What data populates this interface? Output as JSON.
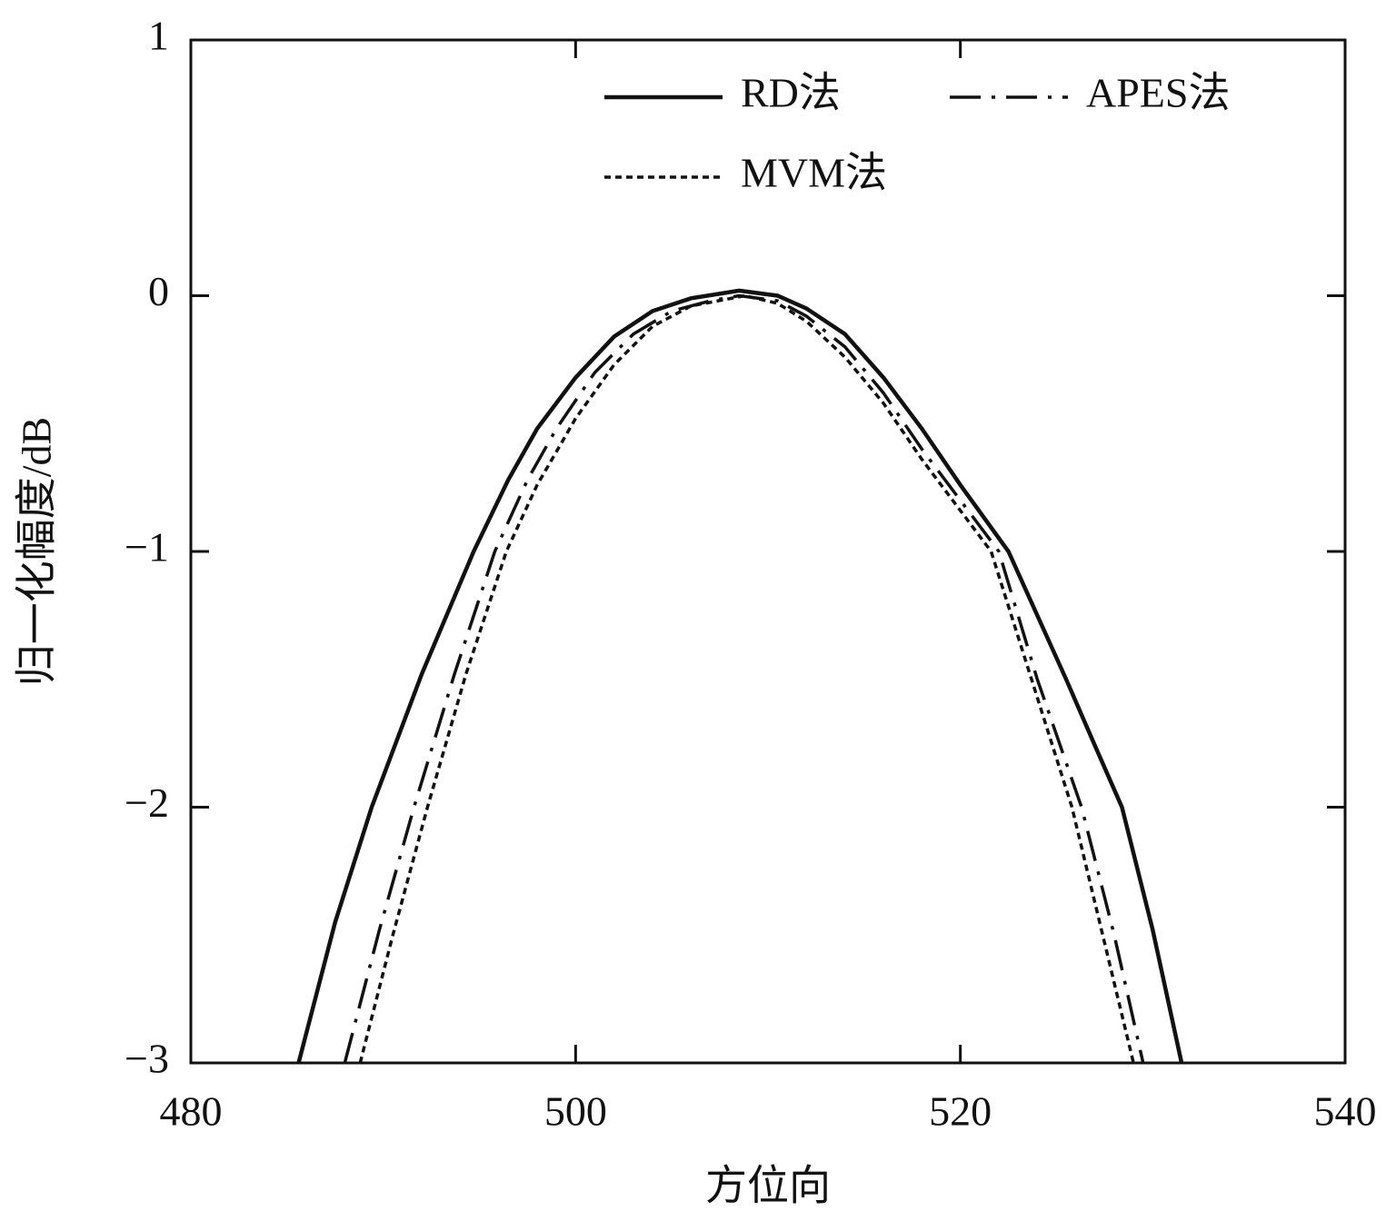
{
  "chart_data": {
    "type": "line",
    "xlabel": "方位向",
    "ylabel": "归一化幅度/dB",
    "xlim": [
      480,
      540
    ],
    "ylim": [
      -3,
      1
    ],
    "xticks": [
      480,
      500,
      520,
      540
    ],
    "yticks": [
      1,
      0,
      {
        "value": -1,
        "label": "−1"
      },
      {
        "value": -2,
        "label": "−2"
      },
      {
        "value": -3,
        "label": "−3"
      }
    ],
    "legend": "upper right",
    "series": [
      {
        "name": "RD法",
        "color": "#111111",
        "style": "solid",
        "x": [
          485.6,
          487.5,
          489.4,
          492,
          494.7,
          496.5,
          498,
          500,
          502,
          504,
          506,
          508.5,
          510.5,
          512,
          514,
          516,
          518,
          520,
          522.5,
          524,
          525.5,
          527,
          528.4,
          530,
          531.5
        ],
        "values": [
          -3,
          -2.45,
          -2,
          -1.48,
          -1,
          -0.72,
          -0.52,
          -0.32,
          -0.16,
          -0.06,
          -0.01,
          0.02,
          0,
          -0.05,
          -0.15,
          -0.32,
          -0.52,
          -0.74,
          -1,
          -1.25,
          -1.5,
          -1.76,
          -2,
          -2.48,
          -3
        ]
      },
      {
        "name": "APES法",
        "color": "#111111",
        "style": "dashdot",
        "x": [
          488,
          489.8,
          491.6,
          493.7,
          495.8,
          497.5,
          499,
          501,
          503,
          505,
          507,
          508.5,
          510.5,
          512,
          514,
          516,
          518,
          520,
          522,
          524,
          526.3,
          528,
          529.5
        ],
        "values": [
          -3,
          -2.48,
          -2,
          -1.48,
          -1,
          -0.72,
          -0.52,
          -0.3,
          -0.15,
          -0.06,
          -0.02,
          0,
          -0.02,
          -0.08,
          -0.2,
          -0.38,
          -0.6,
          -0.8,
          -1,
          -1.5,
          -2,
          -2.5,
          -3
        ]
      },
      {
        "name": "MVM法",
        "color": "#111111",
        "style": "dotted",
        "x": [
          488.8,
          490.5,
          492.3,
          494.3,
          496.4,
          498,
          500,
          502,
          504,
          506,
          508.8,
          510.5,
          512,
          514,
          516,
          518,
          519.8,
          521.6,
          523.7,
          525.8,
          527.4,
          529
        ],
        "values": [
          -3,
          -2.5,
          -2,
          -1.48,
          -1,
          -0.74,
          -0.48,
          -0.27,
          -0.12,
          -0.04,
          0,
          -0.03,
          -0.1,
          -0.24,
          -0.42,
          -0.64,
          -0.82,
          -1,
          -1.5,
          -2,
          -2.5,
          -3
        ]
      }
    ]
  }
}
